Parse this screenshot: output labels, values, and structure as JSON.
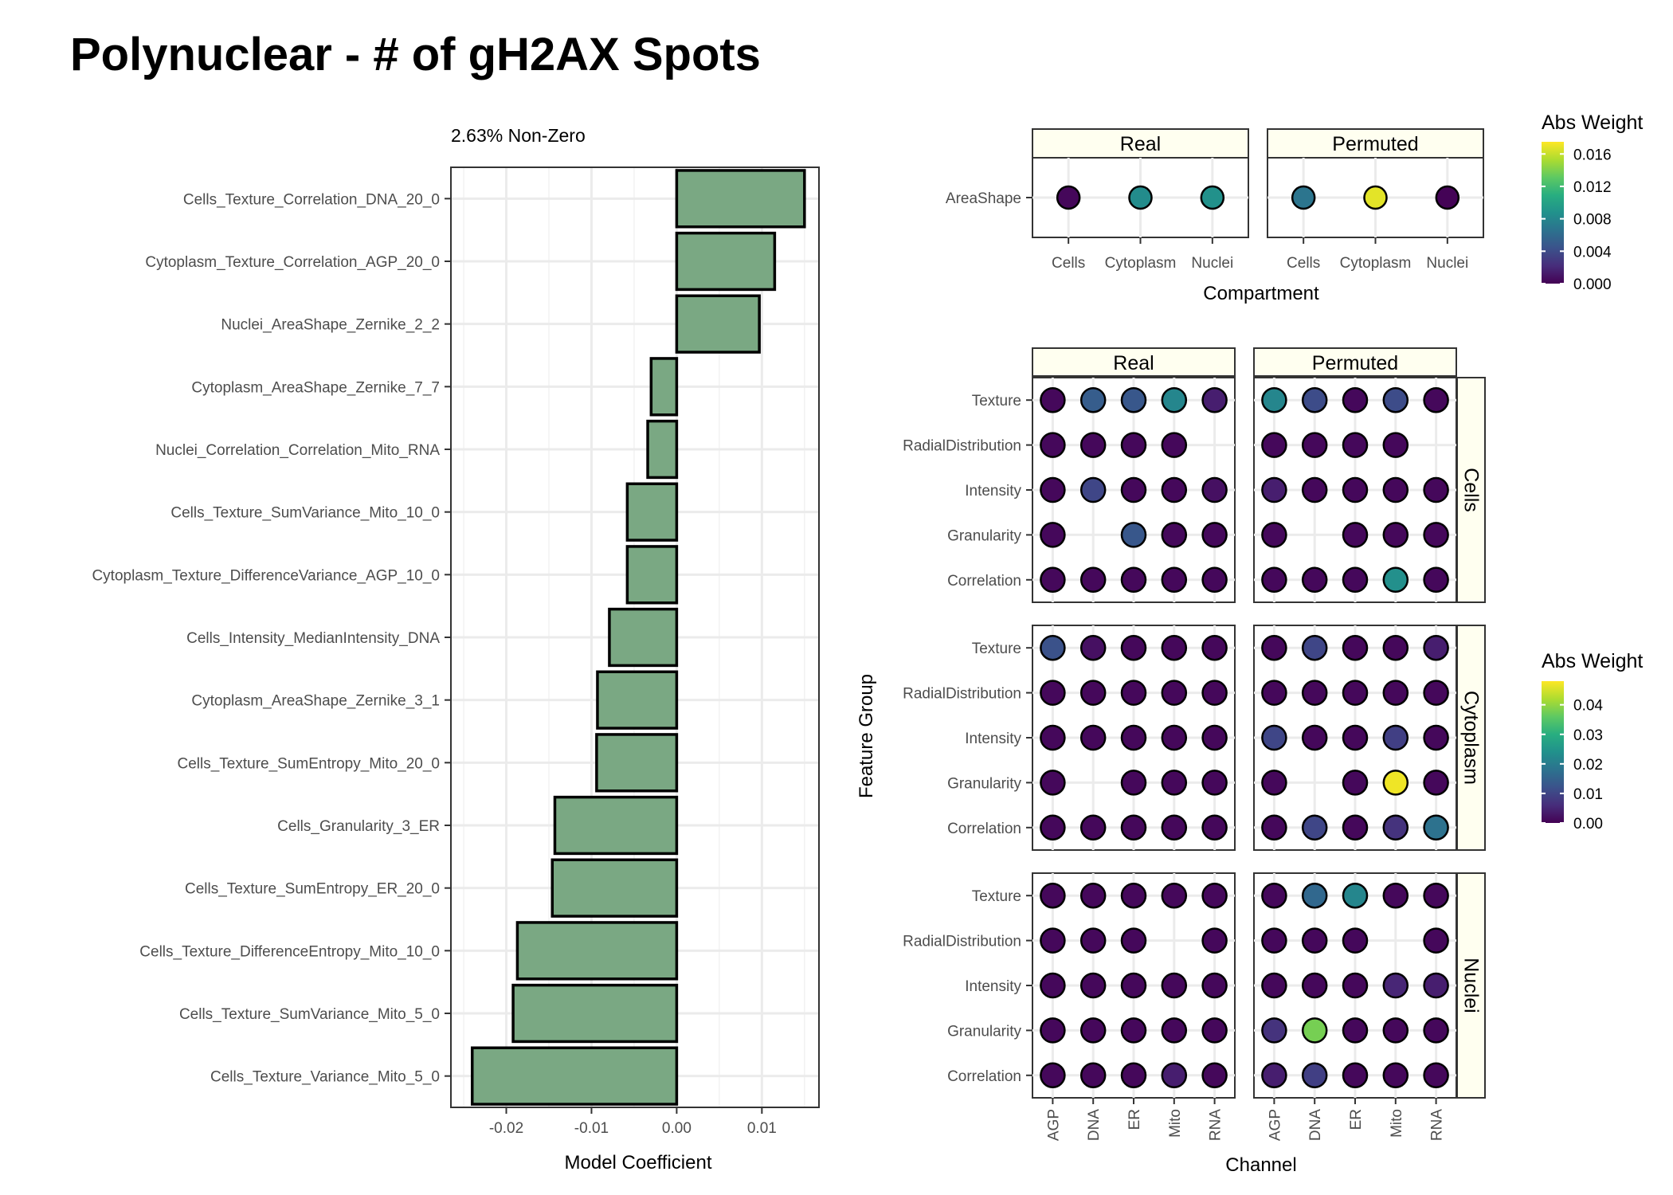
{
  "title": "Polynuclear - # of gH2AX Spots",
  "chart_data": [
    {
      "type": "bar",
      "orientation": "horizontal",
      "subtitle": "2.63% Non-Zero",
      "xlabel": "Model Coefficient",
      "ylabel": "",
      "xlim": [
        -0.0265,
        0.0167
      ],
      "xticks": [
        -0.02,
        -0.01,
        0.0,
        0.01
      ],
      "xtick_labels": [
        "-0.02",
        "-0.01",
        "0.00",
        "0.01"
      ],
      "bar_color": "#7aa883",
      "grid": true,
      "categories": [
        "Cells_Texture_Correlation_DNA_20_0",
        "Cytoplasm_Texture_Correlation_AGP_20_0",
        "Nuclei_AreaShape_Zernike_2_2",
        "Cytoplasm_AreaShape_Zernike_7_7",
        "Nuclei_Correlation_Correlation_Mito_RNA",
        "Cells_Texture_SumVariance_Mito_10_0",
        "Cytoplasm_Texture_DifferenceVariance_AGP_10_0",
        "Cells_Intensity_MedianIntensity_DNA",
        "Cytoplasm_AreaShape_Zernike_3_1",
        "Cells_Texture_SumEntropy_Mito_20_0",
        "Cells_Granularity_3_ER",
        "Cells_Texture_SumEntropy_ER_20_0",
        "Cells_Texture_DifferenceEntropy_Mito_10_0",
        "Cells_Texture_SumVariance_Mito_5_0",
        "Cells_Texture_Variance_Mito_5_0"
      ],
      "values": [
        0.015,
        0.0115,
        0.0097,
        -0.003,
        -0.0034,
        -0.0058,
        -0.0058,
        -0.0079,
        -0.0093,
        -0.0094,
        -0.0143,
        -0.0146,
        -0.0187,
        -0.0192,
        -0.024
      ]
    },
    {
      "type": "scatter",
      "subtype": "dot-grid",
      "xlabel": "Compartment",
      "ylabel": "",
      "facets": [
        "Real",
        "Permuted"
      ],
      "x_categories": [
        "Cells",
        "Cytoplasm",
        "Nuclei"
      ],
      "y_categories": [
        "AreaShape"
      ],
      "color_scale": "viridis",
      "colorbar": {
        "title": "Abs Weight",
        "domain": [
          0,
          0.0175
        ],
        "ticks": [
          0.016,
          0.012,
          0.008,
          0.004,
          0.0
        ],
        "tick_labels": [
          "0.016",
          "0.012",
          "0.008",
          "0.004",
          "0.000"
        ]
      },
      "values": {
        "Real": [
          [
            0.0003,
            0.0085,
            0.0088
          ]
        ],
        "Permuted": [
          [
            0.0068,
            0.0168,
            0.0001
          ]
        ]
      }
    },
    {
      "type": "scatter",
      "subtype": "dot-grid",
      "xlabel": "Channel",
      "ylabel": "Feature Group",
      "col_facets": [
        "Real",
        "Permuted"
      ],
      "row_facets": [
        "Cells",
        "Cytoplasm",
        "Nuclei"
      ],
      "x_categories": [
        "AGP",
        "DNA",
        "ER",
        "Mito",
        "RNA"
      ],
      "y_categories": [
        "Texture",
        "RadialDistribution",
        "Intensity",
        "Granularity",
        "Correlation"
      ],
      "color_scale": "viridis",
      "colorbar": {
        "title": "Abs Weight",
        "domain": [
          0,
          0.048
        ],
        "ticks": [
          0.04,
          0.03,
          0.02,
          0.01,
          0.0
        ],
        "tick_labels": [
          "0.04",
          "0.03",
          "0.02",
          "0.01",
          "0.00"
        ]
      },
      "values": {
        "Cells": {
          "Real": [
            [
              0.001,
              0.014,
              0.013,
              0.022,
              0.004
            ],
            [
              0.001,
              0.001,
              0.001,
              0.001,
              null
            ],
            [
              0.001,
              0.01,
              0.001,
              0.001,
              0.002
            ],
            [
              0.001,
              null,
              0.013,
              0.001,
              0.001
            ],
            [
              0.001,
              0.001,
              0.001,
              0.001,
              0.001
            ]
          ],
          "Permuted": [
            [
              0.022,
              0.011,
              0.001,
              0.011,
              0.001
            ],
            [
              0.001,
              0.001,
              0.001,
              0.001,
              null
            ],
            [
              0.004,
              0.001,
              0.001,
              0.001,
              0.001
            ],
            [
              0.001,
              null,
              0.001,
              0.001,
              0.001
            ],
            [
              0.001,
              0.001,
              0.001,
              0.024,
              0.001
            ]
          ]
        },
        "Cytoplasm": {
          "Real": [
            [
              0.012,
              0.002,
              0.001,
              0.001,
              0.001
            ],
            [
              0.001,
              0.001,
              0.001,
              0.001,
              0.001
            ],
            [
              0.001,
              0.001,
              0.001,
              0.001,
              0.001
            ],
            [
              0.001,
              null,
              0.001,
              0.001,
              0.001
            ],
            [
              0.001,
              0.001,
              0.001,
              0.001,
              0.001
            ]
          ],
          "Permuted": [
            [
              0.001,
              0.01,
              0.001,
              0.001,
              0.004
            ],
            [
              0.001,
              0.001,
              0.001,
              0.001,
              0.001
            ],
            [
              0.01,
              0.001,
              0.001,
              0.009,
              0.001
            ],
            [
              0.001,
              null,
              0.001,
              0.047,
              0.001
            ],
            [
              0.001,
              0.01,
              0.001,
              0.007,
              0.018
            ]
          ]
        },
        "Nuclei": {
          "Real": [
            [
              0.001,
              0.001,
              0.001,
              0.001,
              0.001
            ],
            [
              0.001,
              0.001,
              0.001,
              null,
              0.001
            ],
            [
              0.001,
              0.001,
              0.001,
              0.001,
              0.001
            ],
            [
              0.001,
              0.001,
              0.001,
              0.001,
              0.001
            ],
            [
              0.001,
              0.001,
              0.001,
              0.004,
              0.001
            ]
          ],
          "Permuted": [
            [
              0.001,
              0.016,
              0.022,
              0.001,
              0.001
            ],
            [
              0.001,
              0.001,
              0.001,
              null,
              0.001
            ],
            [
              0.001,
              0.001,
              0.001,
              0.005,
              0.004
            ],
            [
              0.007,
              0.038,
              0.001,
              0.001,
              0.001
            ],
            [
              0.004,
              0.009,
              0.001,
              0.001,
              0.001
            ]
          ]
        }
      }
    }
  ]
}
